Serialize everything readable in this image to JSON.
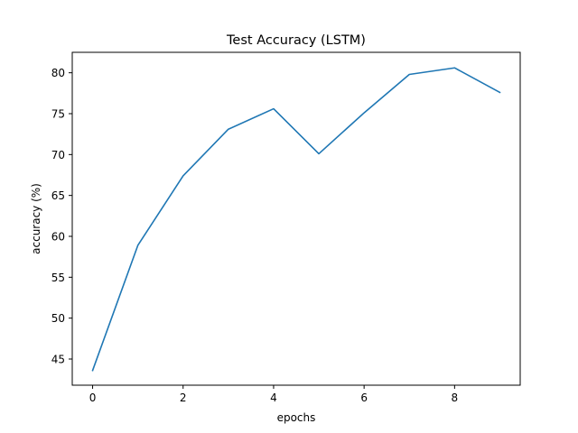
{
  "chart_data": {
    "type": "line",
    "title": "Test Accuracy (LSTM)",
    "xlabel": "epochs",
    "ylabel": "accuracy (%)",
    "xlim": [
      -0.45,
      9.45
    ],
    "ylim": [
      41.8,
      82.5
    ],
    "xticks": [
      0,
      2,
      4,
      6,
      8
    ],
    "yticks": [
      45,
      50,
      55,
      60,
      65,
      70,
      75,
      80
    ],
    "grid": false,
    "series": [
      {
        "color": "#1f77b4",
        "x": [
          0,
          1,
          2,
          3,
          4,
          5,
          6,
          7,
          8,
          9
        ],
        "y": [
          43.6,
          58.9,
          67.4,
          73.1,
          75.6,
          70.1,
          75.1,
          79.8,
          80.6,
          77.6
        ]
      }
    ]
  }
}
